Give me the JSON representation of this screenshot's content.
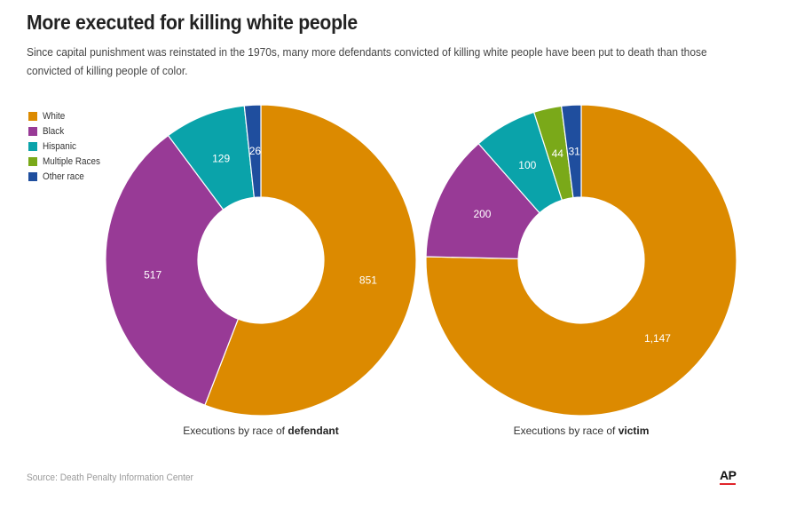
{
  "title": "More executed for killing white people",
  "subtitle": "Since capital punishment was reinstated in the 1970s, many more defendants convicted of killing white people have been put to death than those convicted of killing people of color.",
  "source": "Source: Death Penalty Information Center",
  "logo": "AP",
  "colors": {
    "White": "#dc8a00",
    "Black": "#983a96",
    "Hispanic": "#0aa3aa",
    "Multiple Races": "#7aa919",
    "Other race": "#1f4e9e"
  },
  "legend": [
    "White",
    "Black",
    "Hispanic",
    "Multiple Races",
    "Other race"
  ],
  "chart_data": [
    {
      "type": "pie",
      "donut": true,
      "caption_prefix": "Executions by race of",
      "caption_bold": "defendant",
      "categories": [
        "White",
        "Black",
        "Hispanic",
        "Other race"
      ],
      "values": [
        851,
        517,
        129,
        26
      ],
      "labels": [
        "851",
        "517",
        "129",
        "26"
      ]
    },
    {
      "type": "pie",
      "donut": true,
      "caption_prefix": "Executions by race of",
      "caption_bold": "victim",
      "categories": [
        "White",
        "Black",
        "Hispanic",
        "Multiple Races",
        "Other race"
      ],
      "values": [
        1147,
        200,
        100,
        44,
        31
      ],
      "labels": [
        "1,147",
        "200",
        "100",
        "44",
        "31"
      ]
    }
  ]
}
